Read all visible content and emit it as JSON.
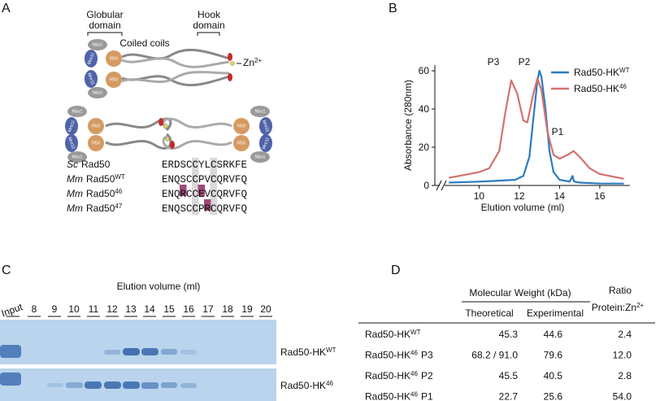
{
  "panel_labels": [
    "A",
    "B",
    "C",
    "D"
  ],
  "panel_a": {
    "globular_domain": [
      "Globular",
      "domain"
    ],
    "hook_domain": [
      "Hook",
      "domain"
    ],
    "coiled_coils": "Coiled coils",
    "zn": {
      "text": "Zn",
      "sup": "2+"
    },
    "proteins": {
      "nbs1": "Nbs1",
      "mre11": "Mre11",
      "r50": "R50"
    },
    "alignment": [
      {
        "species": "Sc",
        "protein": "Rad50",
        "sequence": "ERDSCCYLCSRKFE"
      },
      {
        "species": "Mm",
        "protein": "Rad50",
        "sup": "WT",
        "sequence": "ENQSCCPVCQRVFQ"
      },
      {
        "species": "Mm",
        "protein": "Rad50",
        "sup": "46",
        "sequence": "ENQRCCEVCQRVFQ"
      },
      {
        "species": "Mm",
        "protein": "Rad50",
        "sup": "47",
        "sequence": "ENQSCCPRCQRVFQ"
      }
    ]
  },
  "chart_data": {
    "type": "line",
    "xlabel": "Elution volume (ml)",
    "ylabel": "Absorbance (280nm)",
    "xlim": [
      7.8,
      17.5
    ],
    "ylim": [
      0,
      63
    ],
    "xticks": [
      10,
      12,
      14,
      16
    ],
    "yticks": [
      0,
      20,
      40,
      60
    ],
    "legend": "upper right",
    "annotations": [
      "P3",
      "P2",
      "P1"
    ],
    "series": [
      {
        "name": "Rad50-HK",
        "name_sup": "WT",
        "color": "#2b7bbf",
        "x": [
          8.5,
          10,
          11,
          11.8,
          12.2,
          12.5,
          12.7,
          12.9,
          13.0,
          13.1,
          13.3,
          13.5,
          13.7,
          14.0,
          14.5,
          14.65,
          14.7,
          14.75,
          15,
          16,
          17.2
        ],
        "values": [
          1.5,
          2,
          2.5,
          3,
          5,
          15,
          35,
          55,
          60,
          57,
          40,
          18,
          7,
          3,
          2,
          5,
          2.5,
          2,
          1.5,
          1,
          1
        ]
      },
      {
        "name": "Rad50-HK",
        "name_sup": "46",
        "color": "#d4716e",
        "x": [
          8.5,
          9,
          10,
          10.5,
          11,
          11.3,
          11.6,
          11.9,
          12.2,
          12.4,
          12.7,
          12.9,
          13.1,
          13.4,
          13.7,
          14,
          14.4,
          14.7,
          15,
          15.5,
          16,
          17.2
        ],
        "values": [
          4,
          5,
          7,
          9,
          18,
          38,
          55,
          48,
          34,
          33,
          48,
          56,
          50,
          28,
          16,
          14,
          16,
          18,
          15,
          9,
          6,
          3.5
        ]
      }
    ]
  },
  "panel_c": {
    "title": "Elution volume (ml)",
    "lanes": [
      "Input",
      "8",
      "9",
      "10",
      "11",
      "12",
      "13",
      "14",
      "15",
      "16",
      "17",
      "18",
      "19",
      "20"
    ],
    "rows": [
      {
        "name": "Rad50-HK",
        "sup": "WT"
      },
      {
        "name": "Rad50-HK",
        "sup": "46"
      }
    ]
  },
  "table": {
    "group_header": "Molecular Weight (kDa)",
    "columns": [
      "Theoretical",
      "Experimental"
    ],
    "ratio_header": [
      "Ratio",
      "Protein:Zn"
    ],
    "ratio_sup": "2+",
    "rows": [
      {
        "name": "Rad50-HK",
        "sup": "WT",
        "cells": [
          "45.3",
          "44.6",
          "2.4"
        ]
      },
      {
        "name": "Rad50-HK",
        "sup": "46",
        "peak": "P3",
        "cells": [
          "68.2 / 91.0",
          "79.6",
          "12.0"
        ]
      },
      {
        "name": "Rad50-HK",
        "sup": "46",
        "peak": "P2",
        "cells": [
          "45.5",
          "40.5",
          "2.8"
        ]
      },
      {
        "name": "Rad50-HK",
        "sup": "46",
        "peak": "P1",
        "cells": [
          "22.7",
          "25.6",
          "54.0"
        ]
      }
    ]
  }
}
